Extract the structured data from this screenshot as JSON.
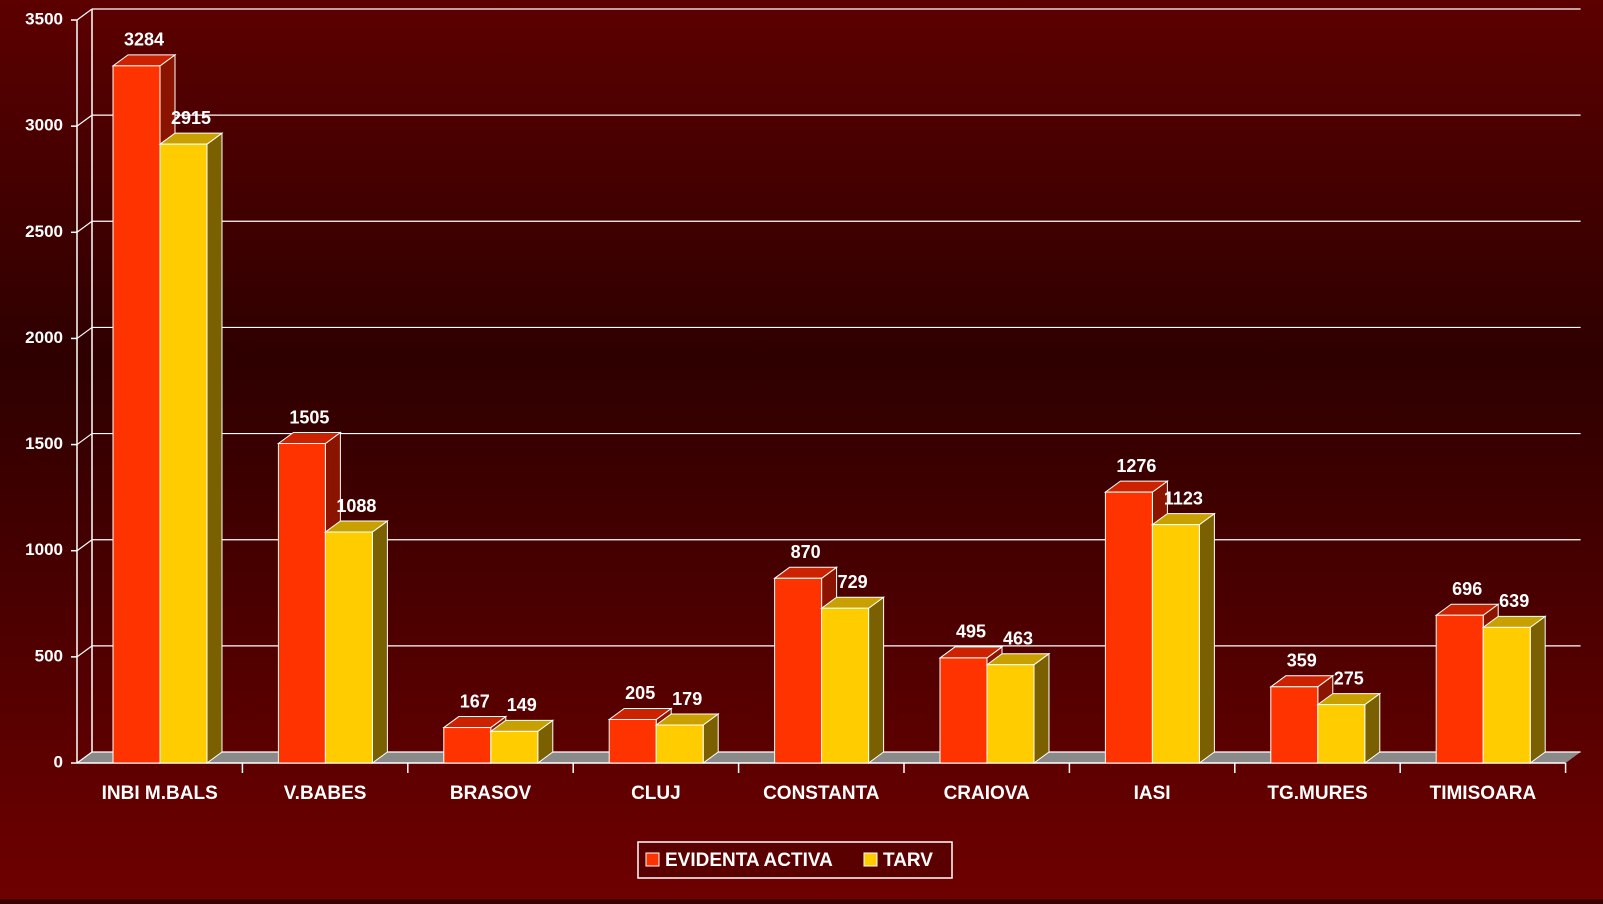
{
  "chart_data": {
    "type": "bar3d",
    "categories": [
      "INBI M.BALS",
      "V.BABES",
      "BRASOV",
      "CLUJ",
      "CONSTANTA",
      "CRAIOVA",
      "IASI",
      "TG.MURES",
      "TIMISOARA"
    ],
    "series": [
      {
        "name": "EVIDENTA ACTIVA",
        "color": "#ff3300",
        "values": [
          3284,
          1505,
          167,
          205,
          870,
          495,
          1276,
          359,
          696
        ]
      },
      {
        "name": "TARV",
        "color": "#ffcc00",
        "values": [
          2915,
          1088,
          149,
          179,
          729,
          463,
          1123,
          275,
          639
        ]
      }
    ],
    "ylim": [
      0,
      3500
    ],
    "yticks": [
      0,
      500,
      1000,
      1500,
      2000,
      2500,
      3000,
      3500
    ],
    "grid": true,
    "legend": "bottom"
  }
}
